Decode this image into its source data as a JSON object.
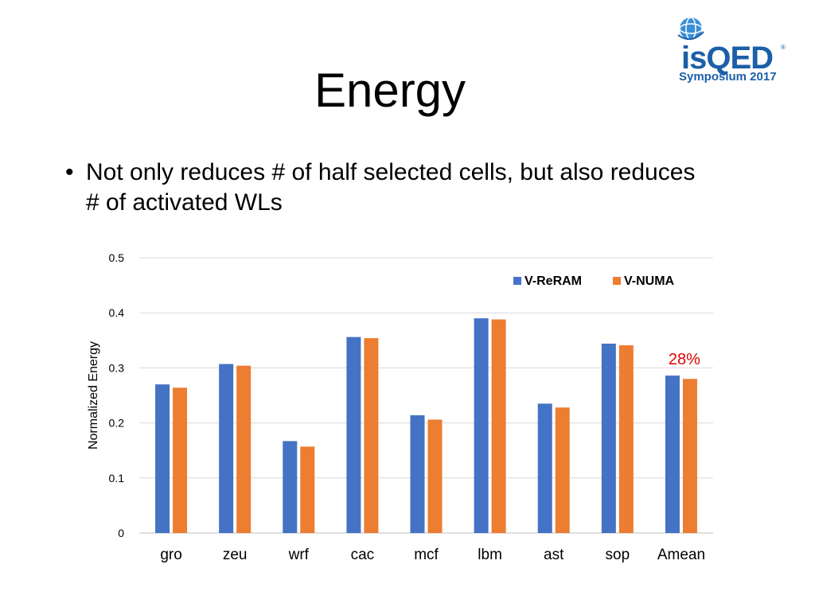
{
  "slide": {
    "title": "Energy",
    "bullet": "Not only reduces # of half selected cells, but also reduces # of activated WLs",
    "bullet_symbol": "•"
  },
  "logo": {
    "name": "isQED",
    "registered": "®",
    "subtitle": "Symposium 2017",
    "color": "#1b5fa8"
  },
  "chart_data": {
    "type": "bar",
    "categories": [
      "gro",
      "zeu",
      "wrf",
      "cac",
      "mcf",
      "lbm",
      "ast",
      "sop",
      "Amean"
    ],
    "series": [
      {
        "name": "V-ReRAM",
        "color": "#4472c4",
        "values": [
          0.27,
          0.307,
          0.167,
          0.356,
          0.214,
          0.39,
          0.235,
          0.344,
          0.286
        ]
      },
      {
        "name": "V-NUMA",
        "color": "#ed7d31",
        "values": [
          0.264,
          0.304,
          0.157,
          0.354,
          0.206,
          0.388,
          0.228,
          0.341,
          0.28
        ]
      }
    ],
    "ylabel": "Normalized Energy",
    "xlabel": "",
    "ylim": [
      0,
      0.5
    ],
    "yticks": [
      0,
      0.1,
      0.2,
      0.3,
      0.4,
      0.5
    ],
    "grid": true,
    "legend": "top-right",
    "annotation": {
      "text": "28%",
      "category": "Amean",
      "color": "#e00000"
    }
  }
}
